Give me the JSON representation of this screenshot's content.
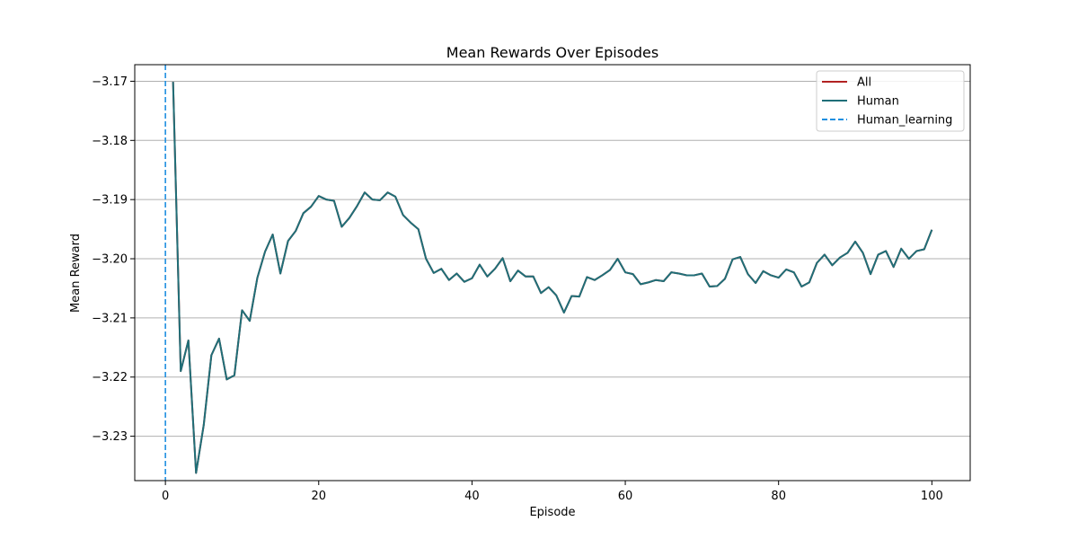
{
  "chart_data": {
    "type": "line",
    "title": "Mean Rewards Over Episodes",
    "xlabel": "Episode",
    "ylabel": "Mean Reward",
    "xlim": [
      -4,
      105
    ],
    "ylim": [
      -3.2375,
      -3.1672
    ],
    "xticks": [
      0,
      20,
      40,
      60,
      80,
      100
    ],
    "xtick_labels": [
      "0",
      "20",
      "40",
      "60",
      "80",
      "100"
    ],
    "yticks": [
      -3.23,
      -3.22,
      -3.21,
      -3.2,
      -3.19,
      -3.18,
      -3.17
    ],
    "ytick_labels": [
      "−3.23",
      "−3.22",
      "−3.21",
      "−3.20",
      "−3.19",
      "−3.18",
      "−3.17"
    ],
    "grid": "horizontal",
    "legend_position": "top-right",
    "x": [
      1,
      2,
      3,
      4,
      5,
      6,
      7,
      8,
      9,
      10,
      11,
      12,
      13,
      14,
      15,
      16,
      17,
      18,
      19,
      20,
      21,
      22,
      23,
      24,
      25,
      26,
      27,
      28,
      29,
      30,
      31,
      32,
      33,
      34,
      35,
      36,
      37,
      38,
      39,
      40,
      41,
      42,
      43,
      44,
      45,
      46,
      47,
      48,
      49,
      50,
      51,
      52,
      53,
      54,
      55,
      56,
      57,
      58,
      59,
      60,
      61,
      62,
      63,
      64,
      65,
      66,
      67,
      68,
      69,
      70,
      71,
      72,
      73,
      74,
      75,
      76,
      77,
      78,
      79,
      80,
      81,
      82,
      83,
      84,
      85,
      86,
      87,
      88,
      89,
      90,
      91,
      92,
      93,
      94,
      95,
      96,
      97,
      98,
      99,
      100
    ],
    "series": [
      {
        "name": "All",
        "color": "#b22222",
        "style": "solid",
        "values": [
          -3.1701,
          -3.219,
          -3.2138,
          -3.2362,
          -3.2281,
          -3.2163,
          -3.2135,
          -3.2204,
          -3.2197,
          -3.2087,
          -3.2105,
          -3.2032,
          -3.1988,
          -3.1959,
          -3.2025,
          -3.197,
          -3.1953,
          -3.1923,
          -3.1912,
          -3.1894,
          -3.19,
          -3.1902,
          -3.1946,
          -3.1931,
          -3.1911,
          -3.1888,
          -3.19,
          -3.1901,
          -3.1888,
          -3.1895,
          -3.1926,
          -3.1939,
          -3.195,
          -3.2,
          -3.2024,
          -3.2017,
          -3.2036,
          -3.2025,
          -3.2039,
          -3.2033,
          -3.201,
          -3.203,
          -3.2017,
          -3.1999,
          -3.2038,
          -3.202,
          -3.203,
          -3.203,
          -3.2058,
          -3.2048,
          -3.2062,
          -3.2091,
          -3.2063,
          -3.2064,
          -3.2031,
          -3.2036,
          -3.2028,
          -3.2019,
          -3.2,
          -3.2023,
          -3.2026,
          -3.2043,
          -3.204,
          -3.2036,
          -3.2038,
          -3.2023,
          -3.2025,
          -3.2028,
          -3.2028,
          -3.2025,
          -3.2047,
          -3.2046,
          -3.2034,
          -3.2001,
          -3.1997,
          -3.2026,
          -3.2041,
          -3.2021,
          -3.2028,
          -3.2032,
          -3.2018,
          -3.2023,
          -3.2047,
          -3.204,
          -3.2007,
          -3.1993,
          -3.2011,
          -3.1998,
          -3.199,
          -3.1971,
          -3.199,
          -3.2026,
          -3.1993,
          -3.1987,
          -3.2014,
          -3.1983,
          -3.2,
          -3.1987,
          -3.1984,
          -3.1951
        ]
      },
      {
        "name": "Human",
        "color": "#1f6f78",
        "style": "solid",
        "values": [
          -3.1701,
          -3.219,
          -3.2138,
          -3.2362,
          -3.2281,
          -3.2163,
          -3.2135,
          -3.2204,
          -3.2197,
          -3.2087,
          -3.2105,
          -3.2032,
          -3.1988,
          -3.1959,
          -3.2025,
          -3.197,
          -3.1953,
          -3.1923,
          -3.1912,
          -3.1894,
          -3.19,
          -3.1902,
          -3.1946,
          -3.1931,
          -3.1911,
          -3.1888,
          -3.19,
          -3.1901,
          -3.1888,
          -3.1895,
          -3.1926,
          -3.1939,
          -3.195,
          -3.2,
          -3.2024,
          -3.2017,
          -3.2036,
          -3.2025,
          -3.2039,
          -3.2033,
          -3.201,
          -3.203,
          -3.2017,
          -3.1999,
          -3.2038,
          -3.202,
          -3.203,
          -3.203,
          -3.2058,
          -3.2048,
          -3.2062,
          -3.2091,
          -3.2063,
          -3.2064,
          -3.2031,
          -3.2036,
          -3.2028,
          -3.2019,
          -3.2,
          -3.2023,
          -3.2026,
          -3.2043,
          -3.204,
          -3.2036,
          -3.2038,
          -3.2023,
          -3.2025,
          -3.2028,
          -3.2028,
          -3.2025,
          -3.2047,
          -3.2046,
          -3.2034,
          -3.2001,
          -3.1997,
          -3.2026,
          -3.2041,
          -3.2021,
          -3.2028,
          -3.2032,
          -3.2018,
          -3.2023,
          -3.2047,
          -3.204,
          -3.2007,
          -3.1993,
          -3.2011,
          -3.1998,
          -3.199,
          -3.1971,
          -3.199,
          -3.2026,
          -3.1993,
          -3.1987,
          -3.2014,
          -3.1983,
          -3.2,
          -3.1987,
          -3.1984,
          -3.1951
        ]
      },
      {
        "name": "Human_learning",
        "color": "#1e8fe0",
        "style": "dashed",
        "vertical_x": 0
      }
    ]
  }
}
